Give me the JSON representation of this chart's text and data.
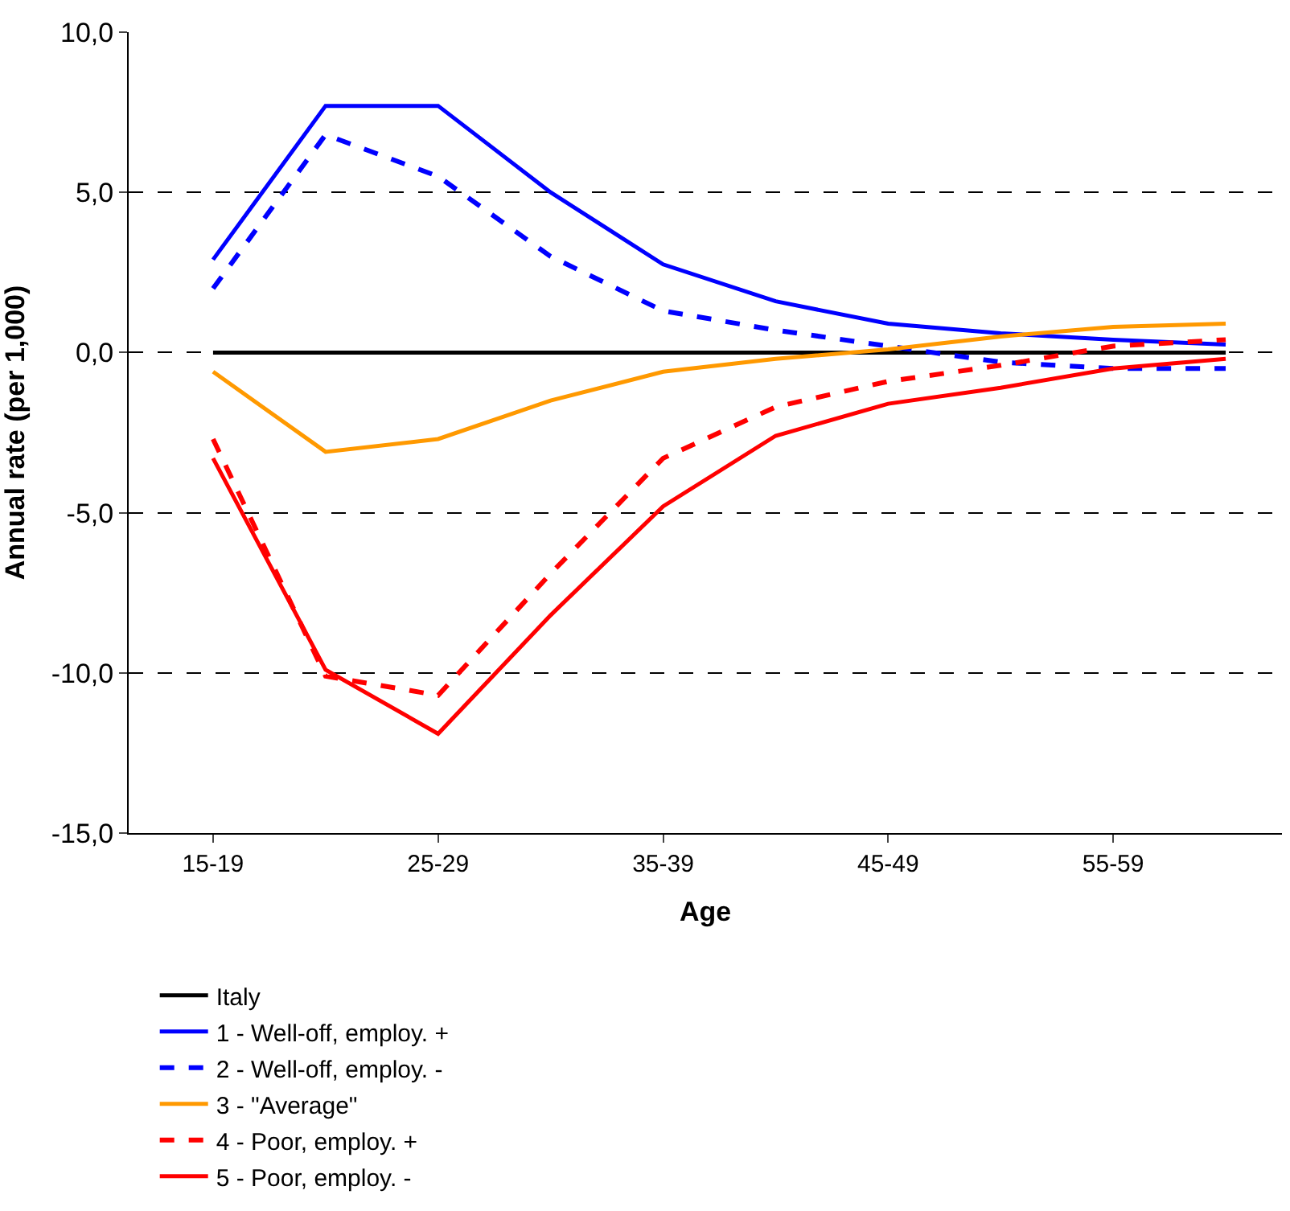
{
  "chart_data": {
    "type": "line",
    "xlabel": "Age",
    "ylabel": "Annual rate (per 1,000)",
    "categories": [
      "15-19",
      null,
      "25-29",
      null,
      "35-39",
      null,
      "45-49",
      null,
      "55-59",
      null
    ],
    "ylim": [
      -15,
      10
    ],
    "yticks": [
      {
        "value": -15,
        "label": "-15,0"
      },
      {
        "value": -10,
        "label": "-10,0"
      },
      {
        "value": -5,
        "label": "-5,0"
      },
      {
        "value": 0,
        "label": "0,0"
      },
      {
        "value": 5,
        "label": "5,0"
      },
      {
        "value": 10,
        "label": "10,0"
      }
    ],
    "grid": "y",
    "legend": "bottom",
    "marker": "none",
    "series": [
      {
        "name": "Italy",
        "color": "#000000",
        "line_style": "solid",
        "values": [
          0,
          0,
          0,
          0,
          0,
          0,
          0,
          0,
          0,
          0
        ]
      },
      {
        "name": "1 - Well-off, employ. +",
        "color": "#0000ff",
        "line_style": "solid",
        "values": [
          2.9,
          7.7,
          7.7,
          5.0,
          2.75,
          1.6,
          0.9,
          0.6,
          0.4,
          0.25
        ]
      },
      {
        "name": "2 - Well-off, employ. -",
        "color": "#0000ff",
        "line_style": "dashed",
        "values": [
          2.0,
          6.8,
          5.5,
          3.0,
          1.3,
          0.7,
          0.2,
          -0.3,
          -0.5,
          -0.5
        ]
      },
      {
        "name": "3 - \"Average\"",
        "color": "#ff9900",
        "line_style": "solid",
        "values": [
          -0.6,
          -3.1,
          -2.7,
          -1.5,
          -0.6,
          -0.2,
          0.1,
          0.5,
          0.8,
          0.9
        ]
      },
      {
        "name": "4 - Poor, employ. +",
        "color": "#ff0000",
        "line_style": "dashed",
        "values": [
          -2.7,
          -10.1,
          -10.7,
          -6.9,
          -3.3,
          -1.7,
          -0.9,
          -0.4,
          0.2,
          0.4
        ]
      },
      {
        "name": "5 - Poor, employ. -",
        "color": "#ff0000",
        "line_style": "solid",
        "values": [
          -3.3,
          -9.9,
          -11.9,
          -8.2,
          -4.8,
          -2.6,
          -1.6,
          -1.1,
          -0.5,
          -0.2
        ]
      }
    ]
  }
}
